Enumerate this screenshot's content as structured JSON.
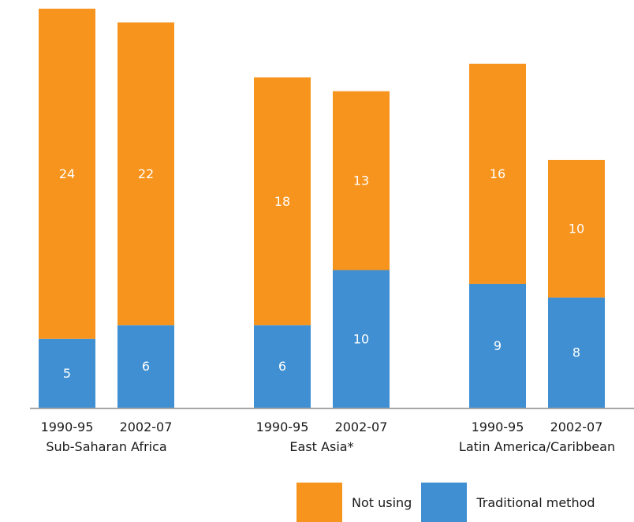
{
  "chart_data": {
    "type": "bar",
    "stacked": true,
    "categories": [
      {
        "period": "1990-95",
        "group": "Sub-Saharan Africa"
      },
      {
        "period": "2002-07",
        "group": "Sub-Saharan Africa"
      },
      {
        "period": "1990-95",
        "group": "East Asia*"
      },
      {
        "period": "2002-07",
        "group": "East Asia*"
      },
      {
        "period": "1990-95",
        "group": "Latin America/Caribbean"
      },
      {
        "period": "2002-07",
        "group": "Latin America/Caribbean"
      }
    ],
    "groups": [
      "Sub-Saharan Africa",
      "East Asia*",
      "Latin America/Caribbean"
    ],
    "series": [
      {
        "name": "Traditional method",
        "color": "#3f8fd2",
        "values": [
          5,
          6,
          6,
          10,
          9,
          8
        ]
      },
      {
        "name": "Not using",
        "color": "#f7941d",
        "values": [
          24,
          22,
          18,
          13,
          16,
          10
        ]
      }
    ],
    "title": "",
    "xlabel": "",
    "ylabel": "",
    "ylim": [
      0,
      29
    ],
    "grid": false,
    "legend_position": "bottom-right",
    "legend": [
      {
        "name": "Not using",
        "color": "#f7941d"
      },
      {
        "name": "Traditional method",
        "color": "#3f8fd2"
      }
    ]
  }
}
